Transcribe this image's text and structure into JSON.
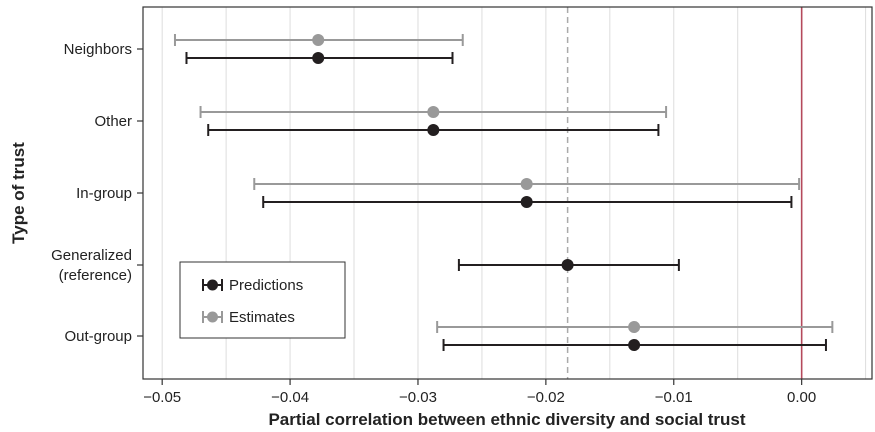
{
  "chart_data": {
    "type": "scatter",
    "title": "",
    "xlabel": "Partial correlation between ethnic diversity and social trust",
    "ylabel": "Type of trust",
    "xlim": [
      -0.0515,
      0.0055
    ],
    "categories": [
      "Neighbors",
      "Other",
      "In-group",
      "Generalized\n(reference)",
      "Out-group"
    ],
    "x_ticks": [
      -0.05,
      -0.04,
      -0.03,
      -0.02,
      -0.01,
      0.0
    ],
    "x_tick_labels": [
      "−0.05",
      "−0.04",
      "−0.03",
      "−0.02",
      "−0.01",
      "0.00"
    ],
    "series": [
      {
        "name": "Predictions",
        "color": "#231f20",
        "values": [
          -0.0378,
          -0.0288,
          -0.0215,
          -0.0183,
          -0.0131
        ],
        "lower": [
          -0.0481,
          -0.0464,
          -0.0421,
          -0.0268,
          -0.028
        ],
        "upper": [
          -0.0273,
          -0.0112,
          -0.0008,
          -0.0096,
          0.0019
        ]
      },
      {
        "name": "Estimates",
        "color": "#999999",
        "values": [
          -0.0378,
          -0.0288,
          -0.0215,
          null,
          -0.0131
        ],
        "lower": [
          -0.049,
          -0.047,
          -0.0428,
          null,
          -0.0285
        ],
        "upper": [
          -0.0265,
          -0.0106,
          -0.0002,
          null,
          0.0024
        ]
      }
    ],
    "reference_lines": [
      {
        "x": -0.0183,
        "style": "dashed",
        "color": "#aaaaaa"
      },
      {
        "x": 0.0,
        "style": "solid",
        "color": "#b5495b"
      }
    ],
    "grid": "vertical",
    "legend_position": "bottom-left"
  }
}
